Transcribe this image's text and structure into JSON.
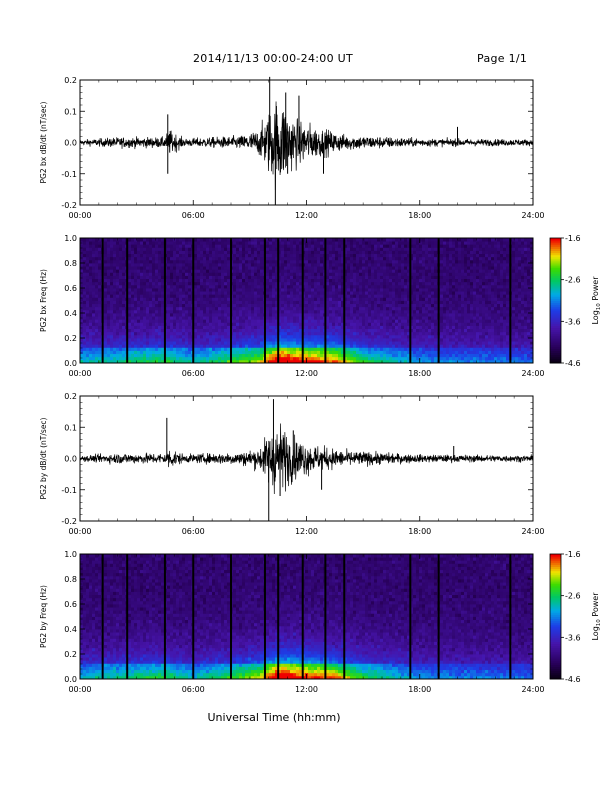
{
  "header": {
    "title": "2014/11/13  00:00-24:00 UT",
    "page": "Page 1/1"
  },
  "footer": {
    "xlabel": "Universal Time (hh:mm)"
  },
  "chart_data": [
    {
      "type": "line",
      "ylabel": "PG2 bx dB/dt (nT/sec)",
      "xticks": [
        "00:00",
        "06:00",
        "12:00",
        "18:00",
        "24:00"
      ],
      "xlim_hours": [
        0,
        24
      ],
      "ylim": [
        -0.2,
        0.2
      ],
      "yticks": [
        "0.2",
        "0.1",
        "0.0",
        "-0.1",
        "-0.2"
      ],
      "envelope": [
        {
          "t": 0,
          "amp": 0.01
        },
        {
          "t": 2,
          "amp": 0.02
        },
        {
          "t": 4.5,
          "amp": 0.02
        },
        {
          "t": 4.7,
          "amp": 0.05
        },
        {
          "t": 5.5,
          "amp": 0.015
        },
        {
          "t": 8.5,
          "amp": 0.025
        },
        {
          "t": 9.5,
          "amp": 0.05
        },
        {
          "t": 10.0,
          "amp": 0.12
        },
        {
          "t": 10.5,
          "amp": 0.18
        },
        {
          "t": 11.3,
          "amp": 0.1
        },
        {
          "t": 12.5,
          "amp": 0.06
        },
        {
          "t": 14,
          "amp": 0.03
        },
        {
          "t": 18,
          "amp": 0.015
        },
        {
          "t": 24,
          "amp": 0.012
        }
      ],
      "spikes": [
        {
          "t": 4.65,
          "v": -0.1
        },
        {
          "t": 4.65,
          "v": 0.09
        },
        {
          "t": 10.05,
          "v": 0.21
        },
        {
          "t": 10.35,
          "v": -0.2
        },
        {
          "t": 10.9,
          "v": 0.16
        },
        {
          "t": 11.0,
          "v": -0.1
        },
        {
          "t": 11.6,
          "v": 0.15
        },
        {
          "t": 12.9,
          "v": -0.1
        },
        {
          "t": 20.0,
          "v": 0.05
        }
      ]
    },
    {
      "type": "heatmap",
      "ylabel": "PG2 bx Freq (Hz)",
      "xticks": [
        "00:00",
        "06:00",
        "12:00",
        "18:00",
        "24:00"
      ],
      "ylim": [
        0,
        1.0
      ],
      "yticks": [
        "1.0",
        "0.8",
        "0.6",
        "0.4",
        "0.2",
        "0.0"
      ],
      "colorbar": {
        "label": "Log10 Power",
        "ticks": [
          "-1.6",
          "-2.6",
          "-3.6",
          "-4.6"
        ],
        "range": [
          -4.6,
          -1.6
        ]
      },
      "gap_lines_hours": [
        1.2,
        2.5,
        4.5,
        6.0,
        8.0,
        9.8,
        10.5,
        11.8,
        13.0,
        14.0,
        17.5,
        19.0,
        22.8
      ],
      "activity": [
        {
          "t": 0,
          "a": 0.35
        },
        {
          "t": 4.5,
          "a": 0.45
        },
        {
          "t": 6,
          "a": 0.35
        },
        {
          "t": 9.5,
          "a": 0.55
        },
        {
          "t": 10.5,
          "a": 0.8
        },
        {
          "t": 12,
          "a": 0.7
        },
        {
          "t": 13.5,
          "a": 0.65
        },
        {
          "t": 15,
          "a": 0.45
        },
        {
          "t": 18,
          "a": 0.3
        },
        {
          "t": 24,
          "a": 0.25
        }
      ]
    },
    {
      "type": "line",
      "ylabel": "PG2 by dB/dt (nT/sec)",
      "xticks": [
        "00:00",
        "06:00",
        "12:00",
        "18:00",
        "24:00"
      ],
      "xlim_hours": [
        0,
        24
      ],
      "ylim": [
        -0.2,
        0.2
      ],
      "yticks": [
        "0.2",
        "0.1",
        "0.0",
        "-0.1",
        "-0.2"
      ],
      "envelope": [
        {
          "t": 0,
          "amp": 0.01
        },
        {
          "t": 2,
          "amp": 0.02
        },
        {
          "t": 4.5,
          "amp": 0.02
        },
        {
          "t": 4.7,
          "amp": 0.04
        },
        {
          "t": 5.5,
          "amp": 0.015
        },
        {
          "t": 8.5,
          "amp": 0.025
        },
        {
          "t": 9.5,
          "amp": 0.04
        },
        {
          "t": 10.0,
          "amp": 0.1
        },
        {
          "t": 10.5,
          "amp": 0.14
        },
        {
          "t": 11.3,
          "amp": 0.08
        },
        {
          "t": 12.5,
          "amp": 0.05
        },
        {
          "t": 14,
          "amp": 0.03
        },
        {
          "t": 18,
          "amp": 0.015
        },
        {
          "t": 24,
          "amp": 0.012
        }
      ],
      "spikes": [
        {
          "t": 4.6,
          "v": 0.13
        },
        {
          "t": 10.0,
          "v": -0.2
        },
        {
          "t": 10.25,
          "v": 0.19
        },
        {
          "t": 10.6,
          "v": -0.12
        },
        {
          "t": 11.3,
          "v": 0.09
        },
        {
          "t": 12.8,
          "v": -0.1
        },
        {
          "t": 19.8,
          "v": 0.04
        }
      ]
    },
    {
      "type": "heatmap",
      "ylabel": "PG2 by Freq (Hz)",
      "xticks": [
        "00:00",
        "06:00",
        "12:00",
        "18:00",
        "24:00"
      ],
      "ylim": [
        0,
        1.0
      ],
      "yticks": [
        "1.0",
        "0.8",
        "0.6",
        "0.4",
        "0.2",
        "0.0"
      ],
      "colorbar": {
        "label": "Log10 Power",
        "ticks": [
          "-1.6",
          "-2.6",
          "-3.6",
          "-4.6"
        ],
        "range": [
          -4.6,
          -1.6
        ]
      },
      "gap_lines_hours": [
        1.2,
        2.5,
        4.5,
        6.0,
        8.0,
        9.8,
        10.5,
        11.8,
        13.0,
        14.0,
        17.5,
        19.0,
        22.8
      ],
      "activity": [
        {
          "t": 0,
          "a": 0.35
        },
        {
          "t": 4.5,
          "a": 0.45
        },
        {
          "t": 6,
          "a": 0.35
        },
        {
          "t": 9.5,
          "a": 0.55
        },
        {
          "t": 10.5,
          "a": 0.8
        },
        {
          "t": 12,
          "a": 0.7
        },
        {
          "t": 13.5,
          "a": 0.65
        },
        {
          "t": 15,
          "a": 0.45
        },
        {
          "t": 18,
          "a": 0.3
        },
        {
          "t": 24,
          "a": 0.25
        }
      ]
    }
  ]
}
